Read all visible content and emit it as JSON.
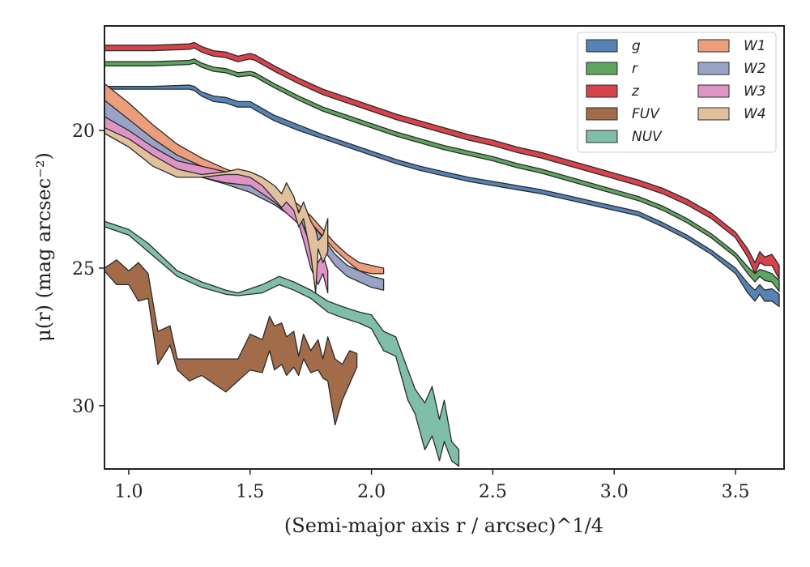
{
  "chart_data": {
    "type": "area",
    "xlabel": "(Semi-major axis r / arcsec)^1/4",
    "ylabel": "μ(r) (mag arcsec⁻²)",
    "xlim": [
      0.9,
      3.7
    ],
    "ylim": [
      32.3,
      16.2
    ],
    "y_inverted": true,
    "x_ticks": [
      "1.0",
      "1.5",
      "2.0",
      "2.5",
      "3.0",
      "3.5"
    ],
    "y_ticks": [
      "20",
      "25",
      "30"
    ],
    "grid": false,
    "legend_position": "top-right",
    "legend_columns": 2,
    "series": [
      {
        "name": "z",
        "color": "#d6434a",
        "x": [
          0.9,
          1.1,
          1.25,
          1.27,
          1.3,
          1.35,
          1.4,
          1.45,
          1.5,
          1.52,
          1.55,
          1.6,
          1.7,
          1.8,
          1.9,
          2.0,
          2.1,
          2.2,
          2.3,
          2.4,
          2.5,
          2.6,
          2.7,
          2.8,
          2.9,
          3.0,
          3.1,
          3.2,
          3.3,
          3.4,
          3.5,
          3.55,
          3.58,
          3.6,
          3.62,
          3.65,
          3.68
        ],
        "y_bright": [
          16.9,
          16.9,
          16.85,
          16.8,
          16.95,
          17.1,
          17.15,
          17.3,
          17.2,
          17.25,
          17.4,
          17.65,
          18.1,
          18.5,
          18.8,
          19.1,
          19.4,
          19.65,
          19.9,
          20.15,
          20.35,
          20.6,
          20.8,
          21.05,
          21.3,
          21.55,
          21.8,
          22.1,
          22.5,
          23.0,
          23.7,
          24.3,
          24.8,
          24.4,
          24.6,
          24.5,
          24.9
        ],
        "y_faint": [
          17.1,
          17.1,
          17.05,
          17.0,
          17.15,
          17.3,
          17.35,
          17.5,
          17.4,
          17.45,
          17.6,
          17.85,
          18.3,
          18.7,
          19.0,
          19.3,
          19.6,
          19.85,
          20.1,
          20.35,
          20.55,
          20.8,
          21.0,
          21.25,
          21.5,
          21.75,
          22.0,
          22.3,
          22.7,
          23.2,
          23.9,
          24.6,
          25.2,
          24.8,
          24.9,
          24.9,
          25.4
        ]
      },
      {
        "name": "r",
        "color": "#5ea55f",
        "x": [
          0.9,
          1.1,
          1.25,
          1.27,
          1.3,
          1.35,
          1.4,
          1.45,
          1.5,
          1.52,
          1.55,
          1.6,
          1.7,
          1.8,
          1.9,
          2.0,
          2.1,
          2.2,
          2.3,
          2.4,
          2.5,
          2.6,
          2.7,
          2.8,
          2.9,
          3.0,
          3.1,
          3.2,
          3.3,
          3.4,
          3.5,
          3.55,
          3.58,
          3.6,
          3.62,
          3.65,
          3.68
        ],
        "y_bright": [
          17.5,
          17.5,
          17.45,
          17.4,
          17.55,
          17.7,
          17.75,
          17.9,
          17.85,
          17.9,
          18.05,
          18.3,
          18.75,
          19.15,
          19.45,
          19.75,
          20.05,
          20.3,
          20.55,
          20.75,
          20.95,
          21.2,
          21.4,
          21.65,
          21.9,
          22.15,
          22.4,
          22.75,
          23.2,
          23.75,
          24.45,
          24.95,
          25.2,
          25.05,
          25.1,
          25.2,
          25.45
        ],
        "y_faint": [
          17.65,
          17.65,
          17.6,
          17.55,
          17.7,
          17.85,
          17.9,
          18.05,
          18.0,
          18.05,
          18.2,
          18.45,
          18.9,
          19.3,
          19.6,
          19.9,
          20.2,
          20.45,
          20.7,
          20.9,
          21.1,
          21.35,
          21.55,
          21.8,
          22.05,
          22.3,
          22.55,
          22.9,
          23.35,
          23.9,
          24.6,
          25.2,
          25.5,
          25.3,
          25.45,
          25.5,
          25.85
        ]
      },
      {
        "name": "g",
        "color": "#5583b5",
        "x": [
          0.9,
          1.1,
          1.25,
          1.27,
          1.3,
          1.35,
          1.4,
          1.45,
          1.5,
          1.52,
          1.55,
          1.6,
          1.7,
          1.8,
          1.9,
          2.0,
          2.1,
          2.2,
          2.3,
          2.4,
          2.5,
          2.6,
          2.7,
          2.8,
          2.9,
          3.0,
          3.1,
          3.2,
          3.3,
          3.4,
          3.5,
          3.55,
          3.58,
          3.6,
          3.62,
          3.65,
          3.68
        ],
        "y_bright": [
          18.4,
          18.4,
          18.35,
          18.4,
          18.6,
          18.75,
          18.8,
          18.95,
          18.95,
          19.05,
          19.2,
          19.45,
          19.8,
          20.15,
          20.45,
          20.75,
          21.05,
          21.3,
          21.5,
          21.7,
          21.85,
          22.0,
          22.15,
          22.35,
          22.55,
          22.75,
          22.95,
          23.35,
          23.8,
          24.35,
          25.0,
          25.55,
          25.8,
          25.6,
          25.8,
          25.75,
          25.95
        ],
        "y_faint": [
          18.5,
          18.5,
          18.5,
          18.55,
          18.75,
          18.95,
          19.0,
          19.15,
          19.15,
          19.25,
          19.4,
          19.65,
          20.0,
          20.3,
          20.6,
          20.9,
          21.2,
          21.45,
          21.65,
          21.85,
          22.0,
          22.15,
          22.3,
          22.5,
          22.7,
          22.9,
          23.1,
          23.5,
          23.95,
          24.5,
          25.2,
          25.9,
          26.2,
          25.95,
          26.2,
          26.2,
          26.4
        ]
      },
      {
        "name": "FUV",
        "color": "#a26b4a",
        "x": [
          0.9,
          0.95,
          1.0,
          1.04,
          1.08,
          1.12,
          1.17,
          1.2,
          1.25,
          1.3,
          1.4,
          1.45,
          1.5,
          1.55,
          1.58,
          1.6,
          1.63,
          1.65,
          1.68,
          1.7,
          1.72,
          1.75,
          1.78,
          1.8,
          1.82,
          1.85,
          1.88,
          1.91,
          1.94
        ],
        "y_bright": [
          25.0,
          24.7,
          25.1,
          24.8,
          25.2,
          27.3,
          27.1,
          28.3,
          28.3,
          28.3,
          28.3,
          28.3,
          27.4,
          27.6,
          26.75,
          27.1,
          27.0,
          27.5,
          27.3,
          28.2,
          27.4,
          28.0,
          27.6,
          28.3,
          27.5,
          28.3,
          28.5,
          28.0,
          28.1
        ],
        "y_faint": [
          25.1,
          25.6,
          25.6,
          26.2,
          26.1,
          28.5,
          27.8,
          28.7,
          29.1,
          28.9,
          29.5,
          29.1,
          28.7,
          28.8,
          28.0,
          28.7,
          28.5,
          28.9,
          28.6,
          28.9,
          28.3,
          28.8,
          28.7,
          29.0,
          29.1,
          30.7,
          29.8,
          29.2,
          28.6
        ]
      },
      {
        "name": "NUV",
        "color": "#7fbfaa",
        "x": [
          0.9,
          1.0,
          1.08,
          1.2,
          1.3,
          1.4,
          1.45,
          1.55,
          1.62,
          1.68,
          1.75,
          1.82,
          1.88,
          1.95,
          2.0,
          2.05,
          2.1,
          2.15,
          2.18,
          2.22,
          2.25,
          2.28,
          2.3,
          2.33,
          2.36
        ],
        "y_bright": [
          23.3,
          23.6,
          24.1,
          25.1,
          25.5,
          25.8,
          25.9,
          25.6,
          25.3,
          25.5,
          25.8,
          26.2,
          26.4,
          26.6,
          26.7,
          27.3,
          27.5,
          28.7,
          29.4,
          29.9,
          29.3,
          30.5,
          29.8,
          31.3,
          31.6
        ],
        "y_faint": [
          23.5,
          23.8,
          24.4,
          25.3,
          25.7,
          25.95,
          26.0,
          25.9,
          25.6,
          25.8,
          26.1,
          26.6,
          26.8,
          27.0,
          27.2,
          28.0,
          28.2,
          29.8,
          30.3,
          31.6,
          31.1,
          32.0,
          31.3,
          32.0,
          32.2
        ]
      },
      {
        "name": "W1",
        "color": "#ec9d7c",
        "x": [
          0.9,
          1.0,
          1.1,
          1.2,
          1.3,
          1.4,
          1.5,
          1.6,
          1.7,
          1.75,
          1.8,
          1.85,
          1.9,
          1.95,
          2.0,
          2.05
        ],
        "y_bright": [
          18.3,
          19.0,
          19.8,
          20.5,
          21.0,
          21.4,
          21.7,
          22.1,
          22.7,
          23.1,
          23.6,
          24.1,
          24.5,
          24.8,
          24.9,
          25.0
        ],
        "y_faint": [
          19.0,
          19.7,
          20.3,
          20.9,
          21.3,
          21.6,
          21.9,
          22.35,
          22.95,
          23.35,
          23.85,
          24.35,
          24.75,
          25.1,
          25.2,
          25.2
        ]
      },
      {
        "name": "W2",
        "color": "#9aa3c5",
        "x": [
          0.9,
          1.0,
          1.1,
          1.2,
          1.3,
          1.4,
          1.5,
          1.6,
          1.7,
          1.75,
          1.8,
          1.85,
          1.9,
          1.95,
          2.0,
          2.05
        ],
        "y_bright": [
          18.9,
          19.6,
          20.3,
          20.9,
          21.3,
          21.6,
          21.9,
          22.3,
          22.9,
          23.35,
          23.9,
          24.5,
          24.9,
          25.1,
          25.3,
          25.4
        ],
        "y_faint": [
          19.6,
          20.2,
          20.8,
          21.3,
          21.7,
          21.95,
          22.25,
          22.7,
          23.3,
          23.8,
          24.3,
          24.9,
          25.3,
          25.5,
          25.7,
          25.8
        ]
      },
      {
        "name": "W3",
        "color": "#de95c5",
        "x": [
          0.9,
          1.0,
          1.1,
          1.2,
          1.3,
          1.4,
          1.5,
          1.55,
          1.6,
          1.65,
          1.7,
          1.72,
          1.75,
          1.78,
          1.8,
          1.82
        ],
        "y_bright": [
          19.5,
          20.0,
          20.6,
          21.1,
          21.3,
          21.5,
          21.6,
          21.9,
          22.2,
          22.6,
          23.0,
          23.5,
          24.2,
          24.8,
          24.5,
          25.1
        ],
        "y_faint": [
          20.0,
          20.5,
          21.0,
          21.5,
          21.7,
          21.9,
          22.0,
          22.3,
          22.6,
          23.0,
          23.4,
          24.0,
          25.0,
          25.6,
          25.2,
          25.9
        ]
      },
      {
        "name": "W4",
        "color": "#e1c19d",
        "x": [
          0.9,
          1.0,
          1.1,
          1.2,
          1.3,
          1.4,
          1.45,
          1.5,
          1.55,
          1.6,
          1.63,
          1.65,
          1.68,
          1.7,
          1.72,
          1.75,
          1.77,
          1.78,
          1.8,
          1.82
        ],
        "y_bright": [
          19.9,
          20.3,
          20.9,
          21.4,
          21.6,
          21.5,
          21.4,
          21.5,
          21.7,
          22.0,
          22.3,
          21.9,
          22.4,
          23.0,
          22.6,
          23.3,
          23.6,
          24.0,
          23.8,
          23.2
        ],
        "y_faint": [
          20.1,
          20.6,
          21.3,
          21.7,
          21.7,
          21.6,
          21.6,
          21.7,
          22.0,
          22.5,
          22.8,
          22.6,
          22.9,
          23.5,
          23.2,
          24.5,
          25.9,
          24.3,
          24.8,
          24.4
        ]
      }
    ]
  }
}
